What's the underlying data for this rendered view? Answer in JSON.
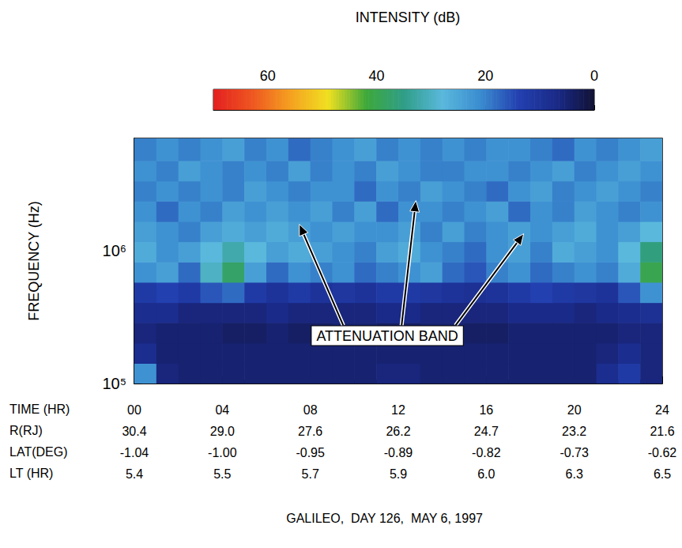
{
  "chart_data": {
    "type": "heatmap",
    "title": "INTENSITY (dB)",
    "xlabel": "TIME (HR)",
    "ylabel": "FREQUENCY (Hz)",
    "caption": "GALILEO,  DAY 126,  MAY 6, 1997",
    "log": "y",
    "grid": false,
    "xlim": [
      0,
      24
    ],
    "xticks": [
      {
        "value": 0,
        "label": "00"
      },
      {
        "value": 4,
        "label": "04"
      },
      {
        "value": 8,
        "label": "08"
      },
      {
        "value": 12,
        "label": "12"
      },
      {
        "value": 16,
        "label": "16"
      },
      {
        "value": 20,
        "label": "20"
      },
      {
        "value": 24,
        "label": "24"
      }
    ],
    "ylim": [
      100000,
      7000000
    ],
    "yticks": [
      {
        "value": 100000,
        "label": "10⁵"
      },
      {
        "value": 1000000,
        "label": "10⁶"
      }
    ],
    "ephemeris": [
      {
        "label": "R(RJ)",
        "values": [
          "30.4",
          "29.0",
          "27.6",
          "26.2",
          "24.7",
          "23.2",
          "21.6"
        ]
      },
      {
        "label": "LAT(DEG)",
        "values": [
          "-1.04",
          "-1.00",
          "-0.95",
          "-0.89",
          "-0.82",
          "-0.73",
          "-0.62"
        ]
      },
      {
        "label": "LT (HR)",
        "values": [
          "5.4",
          "5.5",
          "5.7",
          "5.9",
          "6.0",
          "6.3",
          "6.5"
        ]
      }
    ],
    "x_edges": [
      0,
      1,
      2,
      3,
      4,
      5,
      6,
      7,
      8,
      9,
      10,
      11,
      12,
      13,
      14,
      15,
      16,
      17,
      18,
      19,
      20,
      21,
      22,
      23,
      24
    ],
    "y_edges": [
      100000,
      142000,
      202000,
      287000,
      407000,
      579000,
      822000,
      1170000,
      1660000,
      2360000,
      3350000,
      4760000,
      7000000
    ],
    "cells": [
      [
        22,
        6,
        5,
        5,
        5,
        5,
        5,
        5,
        5,
        5,
        5,
        6,
        6,
        5,
        5,
        5,
        5,
        5,
        5,
        5,
        5,
        8,
        12,
        6
      ],
      [
        8,
        5,
        5,
        5,
        5,
        5,
        5,
        5,
        5,
        5,
        5,
        5,
        5,
        5,
        5,
        5,
        5,
        5,
        5,
        5,
        5,
        6,
        8,
        6
      ],
      [
        6,
        5,
        5,
        5,
        4,
        4,
        5,
        4,
        4,
        5,
        5,
        4,
        4,
        5,
        5,
        4,
        4,
        5,
        5,
        5,
        5,
        5,
        6,
        6
      ],
      [
        8,
        8,
        6,
        6,
        6,
        6,
        7,
        6,
        6,
        6,
        6,
        7,
        7,
        6,
        6,
        6,
        6,
        7,
        7,
        7,
        6,
        7,
        8,
        9
      ],
      [
        12,
        14,
        12,
        16,
        18,
        12,
        10,
        12,
        10,
        11,
        10,
        12,
        12,
        11,
        10,
        9,
        10,
        12,
        14,
        12,
        11,
        10,
        16,
        22
      ],
      [
        22,
        24,
        18,
        30,
        38,
        24,
        18,
        22,
        20,
        22,
        18,
        20,
        22,
        24,
        18,
        16,
        20,
        22,
        18,
        20,
        22,
        20,
        26,
        40
      ],
      [
        26,
        22,
        24,
        28,
        32,
        28,
        24,
        26,
        24,
        22,
        20,
        24,
        26,
        22,
        20,
        18,
        22,
        24,
        20,
        26,
        24,
        22,
        28,
        36
      ],
      [
        24,
        22,
        20,
        24,
        26,
        24,
        26,
        24,
        22,
        24,
        22,
        22,
        24,
        20,
        24,
        20,
        22,
        24,
        22,
        24,
        26,
        22,
        24,
        28
      ],
      [
        22,
        18,
        22,
        20,
        24,
        22,
        24,
        22,
        24,
        20,
        24,
        18,
        22,
        22,
        20,
        22,
        24,
        18,
        22,
        20,
        24,
        22,
        20,
        22
      ],
      [
        20,
        22,
        20,
        22,
        20,
        24,
        22,
        20,
        22,
        22,
        18,
        22,
        20,
        24,
        22,
        20,
        18,
        22,
        24,
        20,
        22,
        24,
        22,
        20
      ],
      [
        22,
        20,
        24,
        22,
        20,
        22,
        20,
        24,
        20,
        22,
        20,
        24,
        22,
        20,
        20,
        22,
        22,
        20,
        22,
        24,
        20,
        22,
        24,
        22
      ],
      [
        20,
        22,
        20,
        22,
        24,
        20,
        22,
        18,
        20,
        22,
        24,
        20,
        22,
        20,
        22,
        20,
        22,
        22,
        20,
        18,
        22,
        20,
        22,
        24
      ]
    ],
    "colorbar": {
      "range": [
        0,
        70
      ],
      "ticks": [
        0,
        20,
        40,
        60
      ]
    },
    "annotation": {
      "text": "ATTENUATION BAND",
      "x": 11.5,
      "y": 229000,
      "arrows": [
        {
          "x": 7.5,
          "y": 1580000
        },
        {
          "x": 12.8,
          "y": 2380000
        },
        {
          "x": 17.7,
          "y": 1340000
        }
      ]
    }
  }
}
